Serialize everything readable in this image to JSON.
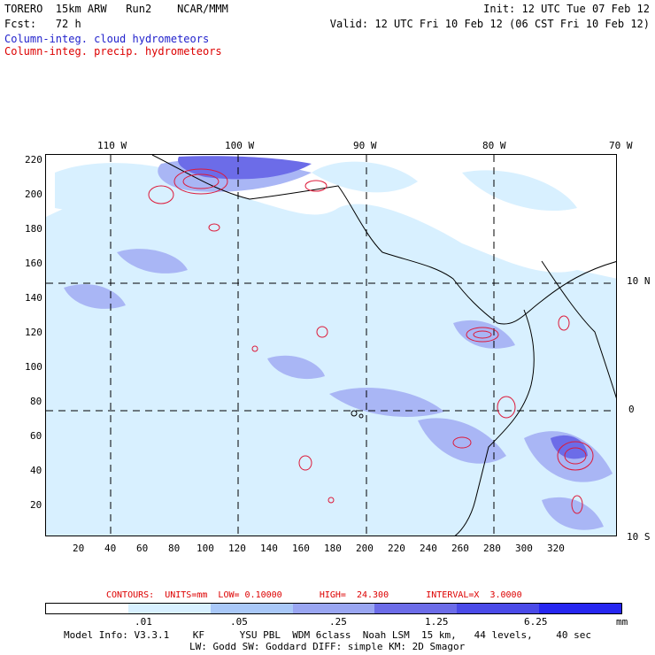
{
  "header": {
    "line1_left": "TORERO  15km ARW   Run2    NCAR/MMM",
    "line1_right": "Init: 12 UTC Tue 07 Feb 12",
    "line2_left": "Fcst:   72 h",
    "line2_right": "Valid: 12 UTC Fri 10 Feb 12 (06 CST Fri 10 Feb 12)",
    "legend_cloud": "Column-integ. cloud hydrometeors",
    "legend_precip": "Column-integ. precip. hydrometeors"
  },
  "map": {
    "top_lon_labels": [
      "110 W",
      "100 W",
      "90 W",
      "80 W",
      "70 W"
    ],
    "right_lat_labels": [
      "10 N",
      "0",
      "10 S"
    ],
    "y_ticks": [
      "220",
      "200",
      "180",
      "160",
      "140",
      "120",
      "100",
      "80",
      "60",
      "40",
      "20"
    ],
    "x_ticks": [
      "20",
      "40",
      "60",
      "80",
      "100",
      "120",
      "140",
      "160",
      "180",
      "200",
      "220",
      "240",
      "260",
      "280",
      "300",
      "320"
    ],
    "colors": {
      "cloud_field": "#d8f0ff",
      "cloud_medium": "#a9b6f5",
      "cloud_strong": "#6c6ce8",
      "precip_contour": "#dd1a3a"
    }
  },
  "contours_line": "CONTOURS:  UNITS=mm  LOW= 0.10000       HIGH=  24.300       INTERVAL=X  3.0000",
  "colorbar": {
    "labels": [
      ".01",
      ".05",
      ".25",
      "1.25",
      "6.25"
    ],
    "unit": "mm",
    "colors": [
      "#ffffff",
      "#d8f0ff",
      "#a9c8f8",
      "#9aa6f2",
      "#6c6ce8",
      "#4a4ae8",
      "#2626f0"
    ]
  },
  "footer": {
    "line1": "Model Info: V3.3.1    KF      YSU PBL  WDM 6class  Noah LSM  15 km,   44 levels,    40 sec",
    "line2": "LW: Godd SW: Goddard DIFF: simple KM: 2D Smagor"
  }
}
